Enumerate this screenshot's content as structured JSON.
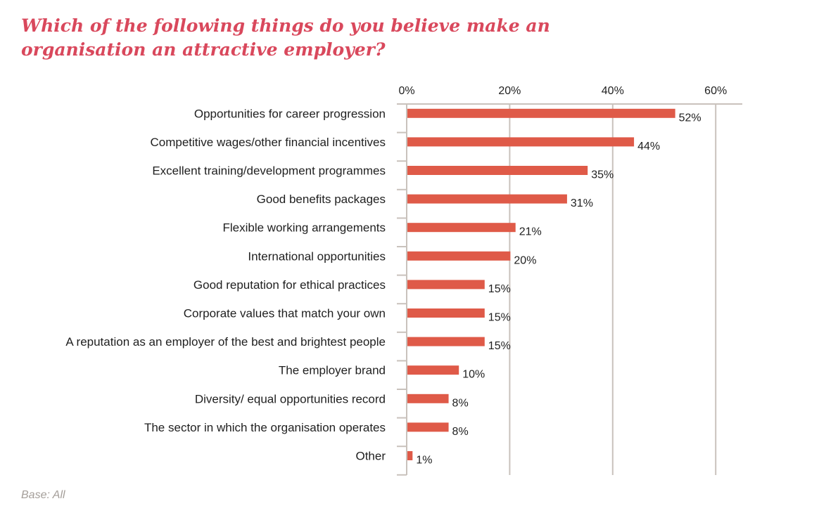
{
  "title": "Which of the following things do you believe make an organisation an attractive employer?",
  "footnote": "Base: All",
  "colors": {
    "title": "#d9485c",
    "bar": "#df5a48",
    "grid": "#c9c2bc",
    "text": "#1f1f1f",
    "footnote": "#a49e99"
  },
  "chart_data": {
    "type": "bar",
    "orientation": "horizontal",
    "title": "Which of the following things do you believe make an organisation an attractive employer?",
    "xlabel": "",
    "ylabel": "",
    "xlim": [
      0,
      60
    ],
    "x_ticks": [
      0,
      20,
      40,
      60
    ],
    "x_tick_labels": [
      "0%",
      "20%",
      "40%",
      "60%"
    ],
    "x_axis_position": "top",
    "grid": true,
    "categories": [
      "Opportunities for career progression",
      "Competitive wages/other financial incentives",
      "Excellent training/development programmes",
      "Good benefits packages",
      "Flexible working arrangements",
      "International opportunities",
      "Good reputation for ethical practices",
      "Corporate values that match your own",
      "A reputation as an employer of the best and brightest people",
      "The employer brand",
      "Diversity/ equal opportunities record",
      "The sector in which the organisation operates",
      "Other"
    ],
    "values": [
      52,
      44,
      35,
      31,
      21,
      20,
      15,
      15,
      15,
      10,
      8,
      8,
      1
    ],
    "value_labels": [
      "52%",
      "44%",
      "35%",
      "31%",
      "21%",
      "20%",
      "15%",
      "15%",
      "15%",
      "10%",
      "8%",
      "8%",
      "1%"
    ]
  }
}
